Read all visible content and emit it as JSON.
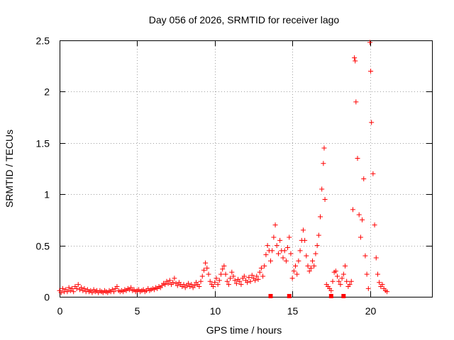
{
  "chart_data": {
    "type": "scatter",
    "title": "Day 056 of 2026, SRMTID for receiver lago",
    "xlabel": "GPS time / hours",
    "ylabel": "SRMTID / TECUs",
    "xlim": [
      0,
      24
    ],
    "ylim": [
      0,
      2.5
    ],
    "xticks": [
      0,
      5,
      10,
      15,
      20
    ],
    "yticks": [
      0,
      0.5,
      1,
      1.5,
      2,
      2.5
    ],
    "xtick_labels": [
      "0",
      "5",
      "10",
      "15",
      "20"
    ],
    "ytick_labels": [
      "0",
      "0.5",
      "1",
      "1.5",
      "2",
      "2.5"
    ],
    "grid": true,
    "marker": "+",
    "series": [
      {
        "name": "SRMTID",
        "color": "#ff0000",
        "points": [
          [
            0.0,
            0.06
          ],
          [
            0.1,
            0.04
          ],
          [
            0.2,
            0.08
          ],
          [
            0.3,
            0.05
          ],
          [
            0.4,
            0.07
          ],
          [
            0.5,
            0.05
          ],
          [
            0.6,
            0.09
          ],
          [
            0.7,
            0.06
          ],
          [
            0.8,
            0.08
          ],
          [
            0.9,
            0.05
          ],
          [
            1.0,
            0.1
          ],
          [
            1.1,
            0.08
          ],
          [
            1.2,
            0.12
          ],
          [
            1.3,
            0.07
          ],
          [
            1.4,
            0.09
          ],
          [
            1.5,
            0.06
          ],
          [
            1.6,
            0.08
          ],
          [
            1.7,
            0.05
          ],
          [
            1.8,
            0.07
          ],
          [
            1.9,
            0.05
          ],
          [
            2.0,
            0.06
          ],
          [
            2.1,
            0.04
          ],
          [
            2.2,
            0.07
          ],
          [
            2.3,
            0.05
          ],
          [
            2.4,
            0.06
          ],
          [
            2.5,
            0.04
          ],
          [
            2.6,
            0.06
          ],
          [
            2.7,
            0.05
          ],
          [
            2.8,
            0.04
          ],
          [
            2.9,
            0.06
          ],
          [
            3.0,
            0.05
          ],
          [
            3.1,
            0.04
          ],
          [
            3.2,
            0.06
          ],
          [
            3.3,
            0.05
          ],
          [
            3.4,
            0.07
          ],
          [
            3.5,
            0.05
          ],
          [
            3.6,
            0.08
          ],
          [
            3.7,
            0.1
          ],
          [
            3.8,
            0.06
          ],
          [
            3.9,
            0.05
          ],
          [
            4.0,
            0.06
          ],
          [
            4.1,
            0.05
          ],
          [
            4.2,
            0.07
          ],
          [
            4.3,
            0.06
          ],
          [
            4.4,
            0.08
          ],
          [
            4.5,
            0.07
          ],
          [
            4.6,
            0.09
          ],
          [
            4.7,
            0.06
          ],
          [
            4.8,
            0.07
          ],
          [
            4.9,
            0.05
          ],
          [
            5.0,
            0.06
          ],
          [
            5.1,
            0.07
          ],
          [
            5.2,
            0.05
          ],
          [
            5.3,
            0.06
          ],
          [
            5.4,
            0.07
          ],
          [
            5.5,
            0.05
          ],
          [
            5.6,
            0.06
          ],
          [
            5.7,
            0.08
          ],
          [
            5.8,
            0.06
          ],
          [
            5.9,
            0.07
          ],
          [
            6.0,
            0.08
          ],
          [
            6.1,
            0.07
          ],
          [
            6.2,
            0.09
          ],
          [
            6.3,
            0.08
          ],
          [
            6.4,
            0.1
          ],
          [
            6.5,
            0.09
          ],
          [
            6.6,
            0.11
          ],
          [
            6.7,
            0.13
          ],
          [
            6.8,
            0.12
          ],
          [
            6.9,
            0.15
          ],
          [
            7.0,
            0.13
          ],
          [
            7.1,
            0.16
          ],
          [
            7.2,
            0.12
          ],
          [
            7.3,
            0.14
          ],
          [
            7.4,
            0.18
          ],
          [
            7.5,
            0.13
          ],
          [
            7.6,
            0.11
          ],
          [
            7.7,
            0.14
          ],
          [
            7.8,
            0.12
          ],
          [
            7.9,
            0.1
          ],
          [
            8.0,
            0.12
          ],
          [
            8.1,
            0.09
          ],
          [
            8.2,
            0.11
          ],
          [
            8.3,
            0.13
          ],
          [
            8.4,
            0.1
          ],
          [
            8.5,
            0.12
          ],
          [
            8.6,
            0.09
          ],
          [
            8.7,
            0.11
          ],
          [
            8.8,
            0.14
          ],
          [
            8.9,
            0.12
          ],
          [
            9.0,
            0.1
          ],
          [
            9.1,
            0.15
          ],
          [
            9.2,
            0.2
          ],
          [
            9.3,
            0.26
          ],
          [
            9.4,
            0.33
          ],
          [
            9.5,
            0.28
          ],
          [
            9.6,
            0.22
          ],
          [
            9.7,
            0.15
          ],
          [
            9.8,
            0.12
          ],
          [
            9.9,
            0.1
          ],
          [
            10.0,
            0.14
          ],
          [
            10.1,
            0.18
          ],
          [
            10.2,
            0.12
          ],
          [
            10.3,
            0.16
          ],
          [
            10.4,
            0.22
          ],
          [
            10.5,
            0.27
          ],
          [
            10.6,
            0.3
          ],
          [
            10.7,
            0.22
          ],
          [
            10.8,
            0.15
          ],
          [
            10.9,
            0.12
          ],
          [
            11.0,
            0.18
          ],
          [
            11.1,
            0.24
          ],
          [
            11.2,
            0.2
          ],
          [
            11.3,
            0.16
          ],
          [
            11.4,
            0.13
          ],
          [
            11.5,
            0.17
          ],
          [
            11.6,
            0.15
          ],
          [
            11.7,
            0.12
          ],
          [
            11.8,
            0.18
          ],
          [
            11.9,
            0.2
          ],
          [
            12.0,
            0.16
          ],
          [
            12.1,
            0.14
          ],
          [
            12.2,
            0.19
          ],
          [
            12.3,
            0.15
          ],
          [
            12.4,
            0.21
          ],
          [
            12.5,
            0.18
          ],
          [
            12.6,
            0.16
          ],
          [
            12.7,
            0.2
          ],
          [
            12.8,
            0.17
          ],
          [
            12.9,
            0.24
          ],
          [
            13.0,
            0.28
          ],
          [
            13.1,
            0.2
          ],
          [
            13.2,
            0.3
          ],
          [
            13.3,
            0.41
          ],
          [
            13.4,
            0.5
          ],
          [
            13.5,
            0.45
          ],
          [
            13.6,
            0.35
          ],
          [
            13.7,
            0.45
          ],
          [
            13.8,
            0.58
          ],
          [
            13.9,
            0.7
          ],
          [
            14.0,
            0.5
          ],
          [
            14.1,
            0.42
          ],
          [
            14.2,
            0.55
          ],
          [
            14.3,
            0.45
          ],
          [
            14.4,
            0.38
          ],
          [
            14.5,
            0.45
          ],
          [
            14.6,
            0.35
          ],
          [
            14.7,
            0.48
          ],
          [
            14.8,
            0.58
          ],
          [
            14.9,
            0.42
          ],
          [
            15.0,
            0.18
          ],
          [
            15.1,
            0.25
          ],
          [
            15.2,
            0.3
          ],
          [
            15.3,
            0.22
          ],
          [
            15.4,
            0.35
          ],
          [
            15.5,
            0.45
          ],
          [
            15.6,
            0.55
          ],
          [
            15.7,
            0.65
          ],
          [
            15.8,
            0.55
          ],
          [
            15.9,
            0.4
          ],
          [
            16.0,
            0.3
          ],
          [
            16.1,
            0.25
          ],
          [
            16.2,
            0.28
          ],
          [
            16.3,
            0.35
          ],
          [
            16.4,
            0.3
          ],
          [
            16.5,
            0.42
          ],
          [
            16.6,
            0.5
          ],
          [
            16.7,
            0.6
          ],
          [
            16.8,
            0.78
          ],
          [
            16.9,
            1.05
          ],
          [
            17.0,
            1.3
          ],
          [
            17.05,
            1.45
          ],
          [
            17.1,
            0.95
          ],
          [
            17.2,
            0.12
          ],
          [
            17.3,
            0.1
          ],
          [
            17.4,
            0.08
          ],
          [
            17.5,
            0.06
          ],
          [
            17.6,
            0.15
          ],
          [
            17.7,
            0.24
          ],
          [
            17.8,
            0.25
          ],
          [
            17.9,
            0.2
          ],
          [
            18.0,
            0.15
          ],
          [
            18.1,
            0.12
          ],
          [
            18.2,
            0.18
          ],
          [
            18.3,
            0.22
          ],
          [
            18.4,
            0.3
          ],
          [
            18.5,
            0.15
          ],
          [
            18.6,
            0.1
          ],
          [
            18.7,
            0.12
          ],
          [
            18.8,
            0.15
          ],
          [
            18.9,
            0.85
          ],
          [
            19.0,
            2.33
          ],
          [
            19.05,
            2.3
          ],
          [
            19.1,
            1.9
          ],
          [
            19.2,
            1.35
          ],
          [
            19.3,
            0.8
          ],
          [
            19.4,
            0.58
          ],
          [
            19.5,
            0.75
          ],
          [
            19.6,
            1.15
          ],
          [
            19.7,
            0.4
          ],
          [
            19.8,
            0.22
          ],
          [
            19.9,
            0.08
          ],
          [
            20.0,
            2.48
          ],
          [
            20.05,
            2.2
          ],
          [
            20.1,
            1.7
          ],
          [
            20.2,
            1.2
          ],
          [
            20.3,
            0.7
          ],
          [
            20.4,
            0.38
          ],
          [
            20.5,
            0.22
          ],
          [
            20.6,
            0.14
          ],
          [
            20.7,
            0.1
          ],
          [
            20.8,
            0.12
          ],
          [
            20.9,
            0.08
          ],
          [
            21.0,
            0.06
          ],
          [
            21.1,
            0.05
          ]
        ]
      }
    ],
    "zero_markers": [
      13.6,
      14.8,
      17.5,
      18.3
    ],
    "zero_marker_value": 0
  }
}
